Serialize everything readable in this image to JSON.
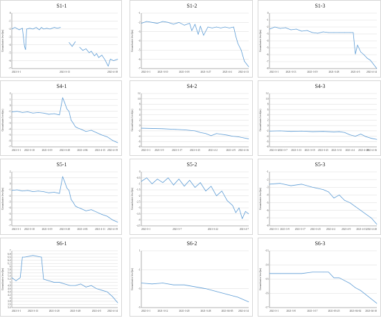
{
  "chart_data": [
    {
      "id": "S1-1",
      "type": "line",
      "title": "S1-1",
      "ylabel": "Groundwater level(m)",
      "ylim": [
        -7,
        0
      ],
      "yticks": [
        "0",
        "-1",
        "-2",
        "-3",
        "-4",
        "-5",
        "-6",
        "-7"
      ],
      "xticks": [
        "2021-3-1",
        "2021-3-13",
        "2021-4-18"
      ],
      "series": [
        {
          "x": [
            0,
            0.03,
            0.07,
            0.1,
            0.12,
            0.13,
            0.14,
            0.17,
            0.2,
            0.23,
            0.26,
            0.28,
            0.3,
            0.33,
            0.36,
            0.4,
            0.43,
            0.46,
            0.5,
            0.54,
            0.57,
            0.6,
            0.62,
            0.64,
            0.67,
            0.7,
            0.73,
            0.75,
            0.78,
            0.8,
            0.82,
            0.85,
            0.88,
            0.91,
            0.93,
            0.96,
            1
          ],
          "y": [
            -2.0,
            -1.8,
            -2.1,
            -1.9,
            -4.2,
            -4.6,
            -2.0,
            -1.9,
            -2.0,
            -1.8,
            -2.1,
            -1.8,
            -2.0,
            -1.9,
            -2.0,
            -1.8,
            -1.9,
            -1.8,
            null,
            -3.7,
            -4.2,
            -3.6,
            null,
            -4.3,
            -4.7,
            -4.5,
            -5.0,
            -4.8,
            -5.4,
            -5.1,
            -5.6,
            -5.3,
            -5.9,
            -6.7,
            -5.8,
            -6.0,
            -5.8
          ]
        }
      ]
    },
    {
      "id": "S1-2",
      "type": "line",
      "title": "S1-2",
      "ylabel": "Groundwater level(m)",
      "ylim": [
        -7,
        -1
      ],
      "yticks": [
        "-1",
        "-2",
        "-3",
        "-4",
        "-5",
        "-6",
        "-7"
      ],
      "xticks": [
        "2021-3-1",
        "2021-3-10",
        "2021-3-18",
        "2021-3-27",
        "2021-4-4",
        "2021-4-13"
      ],
      "series": [
        {
          "x": [
            0,
            0.05,
            0.1,
            0.15,
            0.2,
            0.25,
            0.3,
            0.35,
            0.4,
            0.45,
            0.47,
            0.5,
            0.53,
            0.55,
            0.58,
            0.62,
            0.66,
            0.7,
            0.74,
            0.78,
            0.82,
            0.86,
            0.88,
            0.9,
            0.93,
            0.96,
            1
          ],
          "y": [
            -2.1,
            -1.9,
            -2.0,
            -2.1,
            -1.9,
            -2.0,
            -2.2,
            -2.0,
            -2.3,
            -2.1,
            -2.9,
            -2.2,
            -3.3,
            -2.4,
            -3.4,
            -2.5,
            -2.6,
            -2.5,
            -2.6,
            -2.5,
            -2.6,
            -2.5,
            -3.5,
            -4.3,
            -5.0,
            -6.2,
            -6.8
          ]
        }
      ]
    },
    {
      "id": "S1-3",
      "type": "line",
      "title": "S1-3",
      "ylabel": "Groundwater level(m)",
      "ylim": [
        -8,
        0
      ],
      "yticks": [
        "0",
        "-1",
        "-2",
        "-3",
        "-4",
        "-5",
        "-6",
        "-7",
        "-8"
      ],
      "xticks": [
        "2021-3-1",
        "2021-3-13",
        "2021-3-19",
        "2021-3-28",
        "2021-4-5",
        "2021-4-14"
      ],
      "series": [
        {
          "x": [
            0,
            0.05,
            0.1,
            0.15,
            0.2,
            0.25,
            0.3,
            0.35,
            0.4,
            0.45,
            0.5,
            0.55,
            0.6,
            0.65,
            0.7,
            0.75,
            0.78,
            0.8,
            0.82,
            0.85,
            0.88,
            0.91,
            0.94,
            0.97,
            1
          ],
          "y": [
            -2.3,
            -2.0,
            -2.2,
            -2.1,
            -2.4,
            -2.3,
            -2.6,
            -2.5,
            -2.8,
            -2.9,
            -2.7,
            -2.8,
            -2.8,
            -2.8,
            -2.8,
            -2.8,
            -2.8,
            -5.9,
            -4.6,
            -5.6,
            -6.0,
            -6.5,
            -6.8,
            -7.4,
            -8.0
          ]
        }
      ]
    },
    {
      "id": "S4-1",
      "type": "line",
      "title": "S4-1",
      "ylabel": "Groundwater level(m)",
      "ylim": [
        -7,
        2
      ],
      "yticks": [
        "2",
        "1",
        "0",
        "-1",
        "-2",
        "-3",
        "-4",
        "-5",
        "-6",
        "-7"
      ],
      "xticks": [
        "2021-3-1",
        "2021-3-10",
        "2021-3-19",
        "2021-3-28",
        "2021-4-06",
        "2021-4-15",
        "2021-4-19"
      ],
      "series": [
        {
          "x": [
            0,
            0.05,
            0.1,
            0.15,
            0.2,
            0.25,
            0.3,
            0.35,
            0.4,
            0.45,
            0.48,
            0.5,
            0.52,
            0.54,
            0.56,
            0.58,
            0.6,
            0.62,
            0.65,
            0.7,
            0.75,
            0.8,
            0.85,
            0.9,
            0.95,
            1
          ],
          "y": [
            -1.1,
            -1.0,
            -1.2,
            -1.1,
            -1.3,
            -1.2,
            -1.3,
            -1.5,
            -1.4,
            -1.6,
            1.3,
            0.4,
            -0.6,
            -1.0,
            -2.5,
            -3.0,
            -3.6,
            -3.8,
            -4.0,
            -4.4,
            -4.2,
            -4.6,
            -5.0,
            -5.3,
            -5.9,
            -6.3
          ]
        }
      ]
    },
    {
      "id": "S4-2",
      "type": "line",
      "title": "S4-2",
      "ylabel": "Groundwater level(m)",
      "ylim": [
        -8,
        12
      ],
      "yticks": [
        "12",
        "10",
        "8",
        "6",
        "4",
        "2",
        "0",
        "-2",
        "-4",
        "-6",
        "-8"
      ],
      "xticks": [
        "2021-3-1",
        "2021-3-9",
        "2021-3-17",
        "2021-3-25",
        "2021-4-2",
        "2021-4-9",
        "2021-4-16"
      ],
      "series": [
        {
          "x": [
            0,
            0.1,
            0.2,
            0.3,
            0.4,
            0.5,
            0.55,
            0.6,
            0.65,
            0.7,
            0.75,
            0.8,
            0.85,
            0.9,
            0.95,
            1
          ],
          "y": [
            -1.0,
            -1.1,
            -1.2,
            -1.4,
            -1.6,
            -2.0,
            -2.6,
            -3.0,
            -3.8,
            -3.0,
            -3.3,
            -3.6,
            -4.0,
            -4.2,
            -4.6,
            -5.0
          ]
        }
      ]
    },
    {
      "id": "S4-3",
      "type": "line",
      "title": "S4-3",
      "ylabel": "Groundwater level(m)",
      "ylim": [
        -8,
        12
      ],
      "yticks": [
        "12",
        "10",
        "8",
        "6",
        "4",
        "2",
        "0",
        "-2",
        "-4",
        "-6",
        "-8"
      ],
      "xticks": [
        "2021-3-1",
        "2021-3-7",
        "2021-3-13",
        "2021-3-19",
        "2021-3-25",
        "2021-3-31",
        "2021-4-4",
        "2021-4-10",
        "2021-4-16"
      ],
      "series": [
        {
          "x": [
            0,
            0.1,
            0.2,
            0.3,
            0.4,
            0.5,
            0.6,
            0.65,
            0.7,
            0.75,
            0.8,
            0.85,
            0.9,
            0.95,
            1
          ],
          "y": [
            -2.1,
            -2.0,
            -2.2,
            -2.1,
            -2.3,
            -2.2,
            -2.4,
            -2.3,
            -2.6,
            -3.5,
            -4.0,
            -3.2,
            -4.2,
            -4.8,
            -5.2
          ]
        }
      ]
    },
    {
      "id": "S5-1",
      "type": "line",
      "title": "S5-1",
      "ylabel": "Groundwater level(m)",
      "ylim": [
        -7,
        2
      ],
      "yticks": [
        "2",
        "1",
        "0",
        "-1",
        "-2",
        "-3",
        "-4",
        "-5",
        "-6",
        "-7"
      ],
      "xticks": [
        "2021-3-1",
        "2021-3-10",
        "2021-3-19",
        "2021-3-28",
        "2021-4-03",
        "2021-4-11",
        "2021-4-19"
      ],
      "series": [
        {
          "x": [
            0,
            0.05,
            0.1,
            0.15,
            0.2,
            0.25,
            0.3,
            0.35,
            0.4,
            0.45,
            0.48,
            0.5,
            0.52,
            0.54,
            0.56,
            0.58,
            0.6,
            0.62,
            0.65,
            0.7,
            0.75,
            0.8,
            0.85,
            0.9,
            0.95,
            1
          ],
          "y": [
            -1.1,
            -1.0,
            -1.2,
            -1.1,
            -1.3,
            -1.2,
            -1.3,
            -1.5,
            -1.4,
            -1.6,
            1.2,
            0.3,
            -0.7,
            -1.1,
            -2.6,
            -3.1,
            -3.7,
            -3.9,
            -4.1,
            -4.5,
            -4.3,
            -4.7,
            -5.1,
            -5.4,
            -6.0,
            -6.4
          ]
        }
      ]
    },
    {
      "id": "S5-2",
      "type": "line",
      "title": "S5-2",
      "ylabel": "Groundwater level(m)",
      "ylim": [
        -4.5,
        0
      ],
      "yticks": [
        "0",
        "-0.5",
        "-1",
        "-1.5",
        "-2",
        "-2.5",
        "-3",
        "-3.5",
        "-4",
        "-4.5"
      ],
      "xticks": [
        "2021-3-1",
        "2021-3-7",
        "2021-3-22",
        "2021-4-7"
      ],
      "series": [
        {
          "x": [
            0,
            0.05,
            0.1,
            0.15,
            0.2,
            0.25,
            0.3,
            0.35,
            0.4,
            0.45,
            0.5,
            0.55,
            0.6,
            0.65,
            0.7,
            0.75,
            0.8,
            0.85,
            0.88,
            0.91,
            0.94,
            0.97,
            1
          ],
          "y": [
            -0.8,
            -0.5,
            -1.0,
            -0.6,
            -0.9,
            -0.5,
            -1.1,
            -0.6,
            -1.2,
            -0.7,
            -1.3,
            -0.9,
            -1.6,
            -1.2,
            -2.0,
            -1.6,
            -2.4,
            -2.8,
            -3.4,
            -3.0,
            -3.9,
            -3.3,
            -3.5
          ]
        }
      ]
    },
    {
      "id": "S5-3",
      "type": "line",
      "title": "S5-3",
      "ylabel": "Groundwater level(m)",
      "ylim": [
        -8,
        -1
      ],
      "yticks": [
        "-1",
        "-2",
        "-3",
        "-4",
        "-5",
        "-6",
        "-7",
        "-8"
      ],
      "xticks": [
        "2021-3-1",
        "2021-3-9",
        "2021-3-17",
        "2021-3-25",
        "2021-4-2",
        "2021-4-9",
        "2021-4-13",
        "2021-4-20"
      ],
      "series": [
        {
          "x": [
            0,
            0.1,
            0.2,
            0.3,
            0.4,
            0.5,
            0.55,
            0.6,
            0.65,
            0.7,
            0.75,
            0.8,
            0.85,
            0.9,
            0.95,
            1
          ],
          "y": [
            -2.6,
            -2.5,
            -2.8,
            -2.6,
            -3.0,
            -3.3,
            -3.6,
            -4.4,
            -4.0,
            -4.7,
            -5.0,
            -5.5,
            -6.0,
            -6.5,
            -7.0,
            -7.8
          ]
        }
      ]
    },
    {
      "id": "S6-1",
      "type": "line",
      "title": "S6-1",
      "ylabel": "Groundwater level(m)",
      "ylim": [
        3.4,
        7
      ],
      "yticks": [
        "7",
        "6.8",
        "6.6",
        "6.4",
        "6.2",
        "6",
        "5.8",
        "5.6",
        "5.4",
        "5.2",
        "5",
        "4.8",
        "4.6",
        "4.4",
        "4.2",
        "4",
        "3.8",
        "3.6",
        "3.4"
      ],
      "xticks": [
        "2021-3-1",
        "2021-3-13",
        "2021-3-20",
        "2021-3-28",
        "2021-4-5",
        "2021-4-14"
      ],
      "series": [
        {
          "x": [
            0,
            0.04,
            0.08,
            0.1,
            0.12,
            0.2,
            0.28,
            0.3,
            0.35,
            0.4,
            0.45,
            0.5,
            0.55,
            0.6,
            0.65,
            0.7,
            0.75,
            0.8,
            0.85,
            0.9,
            0.95,
            1
          ],
          "y": [
            5.3,
            5.1,
            5.3,
            6.6,
            6.6,
            6.7,
            6.6,
            5.2,
            5.1,
            5.0,
            5.0,
            4.9,
            4.8,
            4.8,
            4.9,
            4.7,
            4.8,
            4.6,
            4.5,
            4.4,
            4.1,
            3.7
          ]
        }
      ]
    },
    {
      "id": "S6-2",
      "type": "line",
      "title": "S6-2",
      "ylabel": "Groundwater level(m)",
      "ylim": [
        -5,
        1
      ],
      "yticks": [
        "1",
        "-1",
        "-3",
        "-5"
      ],
      "xticks": [
        "2021-3-1",
        "2021-3-12",
        "2021-3-20",
        "2021-3-28",
        "2021-04-05",
        "2021-4-14"
      ],
      "series": [
        {
          "x": [
            0,
            0.1,
            0.2,
            0.3,
            0.4,
            0.5,
            0.6,
            0.7,
            0.8,
            0.9,
            1
          ],
          "y": [
            -2.4,
            -2.5,
            -2.4,
            -2.6,
            -2.6,
            -2.8,
            -3.0,
            -3.3,
            -3.6,
            -3.9,
            -4.4
          ]
        }
      ]
    },
    {
      "id": "S6-3",
      "type": "line",
      "title": "S6-3",
      "ylabel": "Groundwater level(m)",
      "ylim": [
        -17,
        -13
      ],
      "yticks": [
        "-13",
        "-14",
        "-15",
        "-16",
        "-17"
      ],
      "xticks": [
        "2021-3-1",
        "2021-3-8",
        "2021-3-17",
        "2021-03-25",
        "2021-04-02",
        "2021-04-10"
      ],
      "series": [
        {
          "x": [
            0,
            0.1,
            0.2,
            0.3,
            0.4,
            0.5,
            0.55,
            0.6,
            0.65,
            0.7,
            0.75,
            0.8,
            0.85,
            0.9,
            0.95,
            1
          ],
          "y": [
            -14.6,
            -14.6,
            -14.6,
            -14.6,
            -14.5,
            -14.5,
            -14.5,
            -14.9,
            -14.9,
            -15.1,
            -15.3,
            -15.6,
            -15.8,
            -16.1,
            -16.4,
            -16.7
          ]
        }
      ]
    }
  ],
  "style": {
    "line_color": "#5b9bd5",
    "axis_color": "#777777",
    "grid_color": "#cfcfcf",
    "title_color": "#222222"
  }
}
